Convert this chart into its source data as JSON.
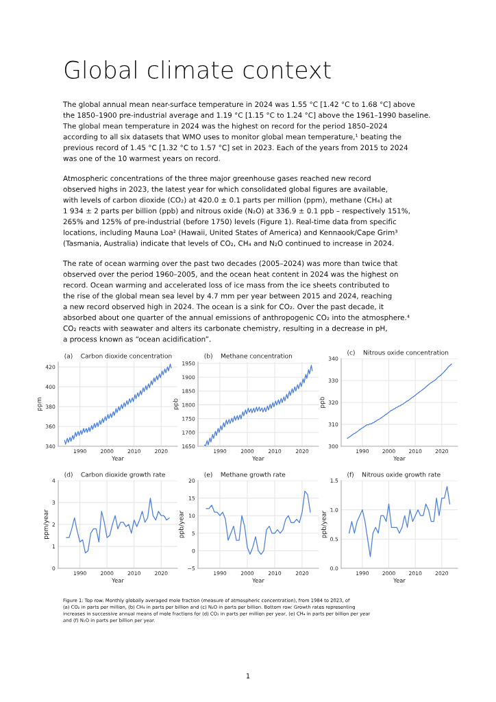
{
  "chart_data": [
    {
      "type": "line",
      "title": "(a)    Carbon dioxide concentration",
      "xlabel": "Year",
      "ylabel": "ppm",
      "xlim": [
        1982,
        2026
      ],
      "xticks": [
        1990,
        2000,
        2010,
        2020
      ],
      "ylim": [
        340,
        425
      ],
      "yticks": [
        340,
        360,
        380,
        400,
        420
      ],
      "grid": true,
      "x": [
        1984.35,
        1984.7,
        1985.35,
        1985.7,
        1986.35,
        1986.7,
        1987.35,
        1987.7,
        1988.35,
        1988.7,
        1989.35,
        1989.7,
        1990.35,
        1990.7,
        1991.35,
        1991.7,
        1992.35,
        1992.7,
        1993.35,
        1993.7,
        1994.35,
        1994.7,
        1995.35,
        1995.7,
        1996.35,
        1996.7,
        1997.35,
        1997.7,
        1998.35,
        1998.7,
        1999.35,
        1999.7,
        2000.35,
        2000.7,
        2001.35,
        2001.7,
        2002.35,
        2002.7,
        2003.35,
        2003.7,
        2004.35,
        2004.7,
        2005.35,
        2005.7,
        2006.35,
        2006.7,
        2007.35,
        2007.7,
        2008.35,
        2008.7,
        2009.35,
        2009.7,
        2010.35,
        2010.7,
        2011.35,
        2011.7,
        2012.35,
        2012.7,
        2013.35,
        2013.7,
        2014.35,
        2014.7,
        2015.35,
        2015.7,
        2016.35,
        2016.7,
        2017.35,
        2017.7,
        2018.35,
        2018.7,
        2019.35,
        2019.7,
        2020.35,
        2020.7,
        2021.35,
        2021.7,
        2022.35,
        2022.7,
        2023.35,
        2023.7
      ],
      "series": [
        {
          "color": "#4a7fe0",
          "values": [
            346,
            342,
            348,
            344,
            349,
            345,
            351,
            347,
            354,
            350,
            355,
            351,
            356,
            352,
            358,
            354,
            358,
            354,
            359,
            355,
            361,
            357,
            363,
            359,
            364,
            360,
            366,
            362,
            368,
            364,
            370,
            366,
            372,
            368,
            373,
            369,
            375,
            371,
            378,
            374,
            380,
            376,
            382,
            378,
            384,
            380,
            386,
            382,
            388,
            384,
            389,
            385,
            392,
            388,
            394,
            390,
            396,
            392,
            399,
            395,
            401,
            397,
            403,
            399,
            406,
            402,
            409,
            405,
            411,
            407,
            413,
            409,
            416,
            412,
            418,
            414,
            420,
            416,
            423,
            419
          ]
        }
      ],
      "annotations": [
        "Global climate context",
        "The global annual mean near-surface temperature in 2024 was 1.55 °C [1.42 °C to 1.68 °C] above\nthe 1850–1900 pre-industrial average and 1.19 °C [1.15 °C to 1.24 °C] above the 1961–1990 baseline.\nThe global mean temperature in 2024 was the highest on record for the period 1850–2024\naccording to all six datasets that WMO uses to monitor global mean temperature,¹ beating the\nprevious record of 1.45 °C [1.32 °C to 1.57 °C] set in 2023. Each of the years from 2015 to 2024\nwas one of the 10 warmest years on record.",
        "Atmospheric concentrations of the three major greenhouse gases reached new record\nobserved highs in 2023, the latest year for which consolidated global figures are available,\nwith levels of carbon dioxide (CO₂) at 420.0 ± 0.1 parts per million (ppm), methane (CH₄) at\n1 934 ± 2 parts per billion (ppb) and nitrous oxide (N₂O) at 336.9 ± 0.1 ppb – respectively 151%,\n265% and 125% of pre-industrial (before 1750) levels (Figure 1). Real-time data from specific\nlocations, including Mauna Loa² (Hawaii, United States of America) and Kennaook/Cape Grim³\n(Tasmania, Australia) indicate that levels of CO₂, CH₄ and N₂O continued to increase in 2024.",
        "The rate of ocean warming over the past two decades (2005–2024) was more than twice that\nobserved over the period 1960–2005, and the ocean heat content in 2024 was the highest on\nrecord. Ocean warming and accelerated loss of ice mass from the ice sheets contributed to\nthe rise of the global mean sea level by 4.7 mm per year between 2015 and 2024, reaching\na new record observed high in 2024. The ocean is a sink for CO₂. Over the past decade, it\nabsorbed about one quarter of the annual emissions of anthropogenic CO₂ into the atmosphere.⁴\nCO₂ reacts with seawater and alters its carbonate chemistry, resulting in a decrease in pH,\na process known as “ocean acidification”."
      ]
    },
    {
      "type": "line",
      "title": "(b)    Methane concentration",
      "xlabel": "Year",
      "ylabel": "ppb",
      "xlim": [
        1982,
        2026
      ],
      "xticks": [
        1990,
        2000,
        2010,
        2020
      ],
      "ylim": [
        1650,
        1955
      ],
      "yticks": [
        1650,
        1700,
        1750,
        1800,
        1850,
        1900,
        1950
      ],
      "grid": true,
      "x": [
        1984.35,
        1984.7,
        1985.35,
        1985.7,
        1986.35,
        1986.7,
        1987.35,
        1987.7,
        1988.35,
        1988.7,
        1989.35,
        1989.7,
        1990.35,
        1990.7,
        1991.35,
        1991.7,
        1992.35,
        1992.7,
        1993.35,
        1993.7,
        1994.35,
        1994.7,
        1995.35,
        1995.7,
        1996.35,
        1996.7,
        1997.35,
        1997.7,
        1998.35,
        1998.7,
        1999.35,
        1999.7,
        2000.35,
        2000.7,
        2001.35,
        2001.7,
        2002.35,
        2002.7,
        2003.35,
        2003.7,
        2004.35,
        2004.7,
        2005.35,
        2005.7,
        2006.35,
        2006.7,
        2007.35,
        2007.7,
        2008.35,
        2008.7,
        2009.35,
        2009.7,
        2010.35,
        2010.7,
        2011.35,
        2011.7,
        2012.35,
        2012.7,
        2013.35,
        2013.7,
        2014.35,
        2014.7,
        2015.35,
        2015.7,
        2016.35,
        2016.7,
        2017.35,
        2017.7,
        2018.35,
        2018.7,
        2019.35,
        2019.7,
        2020.35,
        2020.7,
        2021.35,
        2021.7,
        2022.35,
        2022.7,
        2023.35,
        2023.7
      ],
      "series": [
        {
          "color": "#4a7fe0",
          "values": [
            1655,
            1650,
            1670,
            1655,
            1680,
            1665,
            1693,
            1678,
            1704,
            1689,
            1715,
            1700,
            1724,
            1709,
            1735,
            1720,
            1745,
            1730,
            1747,
            1732,
            1752,
            1737,
            1759,
            1744,
            1761,
            1746,
            1764,
            1749,
            1775,
            1760,
            1782,
            1767,
            1788,
            1773,
            1786,
            1771,
            1788,
            1773,
            1792,
            1777,
            1792,
            1777,
            1789,
            1774,
            1790,
            1775,
            1796,
            1781,
            1802,
            1787,
            1808,
            1793,
            1814,
            1799,
            1818,
            1803,
            1823,
            1808,
            1829,
            1814,
            1838,
            1823,
            1849,
            1834,
            1858,
            1843,
            1865,
            1850,
            1873,
            1858,
            1881,
            1866,
            1894,
            1879,
            1910,
            1895,
            1927,
            1912,
            1943,
            1923
          ]
        }
      ]
    },
    {
      "type": "line",
      "title": "(c)    Nitrous oxide concentration",
      "xlabel": "Year",
      "ylabel": "ppb",
      "xlim": [
        1982,
        2026
      ],
      "xticks": [
        1990,
        2000,
        2010,
        2020
      ],
      "ylim": [
        300,
        340
      ],
      "yticks": [
        300,
        310,
        320,
        330,
        340
      ],
      "grid": true,
      "x": [
        1984.35,
        1984.7,
        1985.35,
        1985.7,
        1986.35,
        1986.7,
        1987.35,
        1987.7,
        1988.35,
        1988.7,
        1989.35,
        1989.7,
        1990.35,
        1990.7,
        1991.35,
        1991.7,
        1992.35,
        1992.7,
        1993.35,
        1993.7,
        1994.35,
        1994.7,
        1995.35,
        1995.7,
        1996.35,
        1996.7,
        1997.35,
        1997.7,
        1998.35,
        1998.7,
        1999.35,
        1999.7,
        2000.35,
        2000.7,
        2001.35,
        2001.7,
        2002.35,
        2002.7,
        2003.35,
        2003.7,
        2004.35,
        2004.7,
        2005.35,
        2005.7,
        2006.35,
        2006.7,
        2007.35,
        2007.7,
        2008.35,
        2008.7,
        2009.35,
        2009.7,
        2010.35,
        2010.7,
        2011.35,
        2011.7,
        2012.35,
        2012.7,
        2013.35,
        2013.7,
        2014.35,
        2014.7,
        2015.35,
        2015.7,
        2016.35,
        2016.7,
        2017.35,
        2017.7,
        2018.35,
        2018.7,
        2019.35,
        2019.7,
        2020.35,
        2020.7,
        2021.35,
        2021.7,
        2022.35,
        2022.7,
        2023.35,
        2023.7
      ],
      "series": [
        {
          "color": "#4a7fe0",
          "values": [
            303.6,
            304.0,
            304.4,
            304.8,
            305.3,
            305.7,
            306.0,
            306.4,
            306.9,
            307.3,
            307.8,
            308.2,
            308.6,
            309.0,
            309.4,
            309.8,
            309.8,
            310.2,
            310.2,
            310.6,
            310.8,
            311.2,
            311.6,
            312.0,
            312.3,
            312.7,
            313.1,
            313.5,
            314.0,
            314.4,
            314.8,
            315.2,
            315.8,
            316.2,
            316.5,
            316.9,
            317.2,
            317.6,
            317.9,
            318.3,
            318.5,
            318.9,
            319.2,
            319.6,
            320.1,
            320.5,
            320.8,
            321.2,
            321.8,
            322.2,
            322.6,
            323.0,
            323.6,
            324.0,
            324.5,
            324.9,
            325.4,
            325.8,
            326.3,
            326.7,
            327.4,
            327.8,
            328.4,
            328.8,
            329.2,
            329.6,
            330.0,
            330.4,
            331.2,
            331.6,
            332.1,
            332.5,
            333.3,
            333.7,
            334.6,
            335.0,
            336.0,
            336.4,
            337.1,
            337.5
          ]
        }
      ]
    },
    {
      "type": "line",
      "title": "(d)    Carbon dioxide growth rate",
      "xlabel": "Year",
      "ylabel": "ppm/year",
      "xlim": [
        1982,
        2026
      ],
      "xticks": [
        1990,
        2000,
        2010,
        2020
      ],
      "ylim": [
        0,
        4
      ],
      "yticks": [
        0,
        1,
        2,
        3,
        4
      ],
      "grid": true,
      "x": [
        1985,
        1986,
        1987,
        1988,
        1989,
        1990,
        1991,
        1992,
        1993,
        1994,
        1995,
        1996,
        1997,
        1998,
        1999,
        2000,
        2001,
        2002,
        2003,
        2004,
        2005,
        2006,
        2007,
        2008,
        2009,
        2010,
        2011,
        2012,
        2013,
        2014,
        2015,
        2016,
        2017,
        2018,
        2019,
        2020,
        2021,
        2022,
        2023
      ],
      "series": [
        {
          "color": "#4a7fe0",
          "values": [
            1.4,
            1.4,
            1.8,
            2.3,
            1.7,
            1.2,
            1.3,
            0.7,
            0.8,
            1.6,
            1.8,
            1.8,
            1.2,
            2.6,
            2.1,
            1.4,
            1.5,
            2.0,
            2.4,
            1.8,
            2.1,
            2.1,
            1.9,
            2.0,
            1.6,
            2.2,
            1.9,
            2.2,
            2.6,
            2.1,
            2.3,
            3.2,
            2.4,
            2.2,
            2.6,
            2.4,
            2.4,
            2.2,
            2.3
          ]
        }
      ]
    },
    {
      "type": "line",
      "title": "(e)    Methane growth rate",
      "xlabel": "Year",
      "ylabel": "ppb/year",
      "xlim": [
        1982,
        2026
      ],
      "xticks": [
        1990,
        2000,
        2010,
        2020
      ],
      "ylim": [
        -5,
        20
      ],
      "yticks": [
        {
          "value": -5,
          "label": "−5"
        },
        0,
        5,
        10,
        15,
        20
      ],
      "grid": true,
      "x": [
        1985,
        1986,
        1987,
        1988,
        1989,
        1990,
        1991,
        1992,
        1993,
        1994,
        1995,
        1996,
        1997,
        1998,
        1999,
        2000,
        2001,
        2002,
        2003,
        2004,
        2005,
        2006,
        2007,
        2008,
        2009,
        2010,
        2011,
        2012,
        2013,
        2014,
        2015,
        2016,
        2017,
        2018,
        2019,
        2020,
        2021,
        2022,
        2023
      ],
      "series": [
        {
          "color": "#4a7fe0",
          "values": [
            12,
            12,
            13,
            11,
            11,
            10,
            11,
            9,
            3,
            5,
            7,
            3,
            3,
            10,
            7,
            1,
            -1,
            1,
            4,
            0,
            -1,
            0,
            6,
            7,
            5,
            5,
            6,
            5,
            6,
            9,
            10,
            8,
            8,
            9,
            8,
            11,
            17,
            16,
            11
          ]
        }
      ]
    },
    {
      "type": "line",
      "title": "(f)    Nitrous oxide growth rate",
      "xlabel": "Year",
      "ylabel": "ppb/year",
      "xlim": [
        1982,
        2026
      ],
      "xticks": [
        1990,
        2000,
        2010,
        2020
      ],
      "ylim": [
        0,
        1.5
      ],
      "yticks": [
        {
          "value": 0,
          "label": "0.0"
        },
        {
          "value": 0.5,
          "label": "0.5"
        },
        {
          "value": 1,
          "label": "1.0"
        },
        {
          "value": 1.5,
          "label": "1.5"
        }
      ],
      "grid": true,
      "x": [
        1985,
        1986,
        1987,
        1988,
        1989,
        1990,
        1991,
        1992,
        1993,
        1994,
        1995,
        1996,
        1997,
        1998,
        1999,
        2000,
        2001,
        2002,
        2003,
        2004,
        2005,
        2006,
        2007,
        2008,
        2009,
        2010,
        2011,
        2012,
        2013,
        2014,
        2015,
        2016,
        2017,
        2018,
        2019,
        2020,
        2021,
        2022,
        2023
      ],
      "series": [
        {
          "color": "#4a7fe0",
          "values": [
            0.6,
            0.8,
            0.6,
            0.8,
            0.9,
            1.0,
            0.8,
            0.5,
            0.2,
            0.6,
            0.7,
            0.6,
            0.9,
            0.9,
            0.8,
            1.1,
            0.7,
            0.7,
            0.7,
            0.6,
            0.7,
            0.9,
            0.7,
            1.0,
            0.8,
            0.9,
            1.0,
            0.9,
            0.9,
            1.1,
            1.0,
            0.8,
            0.8,
            1.2,
            0.9,
            1.2,
            1.2,
            1.4,
            1.1
          ]
        }
      ],
      "annotations": [
        "Figure 1: Top row: Monthly globally averaged mole fraction (measure of atmospheric concentration), from 1984 to 2023, of\n(a) CO₂ in parts per million, (b) CH₄ in parts per billion and (c) N₂O in parts per billion. Bottom row: Growth rates representing\nincreases in successive annual means of mole fractions for (d) CO₂ in parts per million per year, (e) CH₄ in parts per billion per year\nand (f) N₂O in parts per billion per year.",
        "1"
      ]
    }
  ]
}
